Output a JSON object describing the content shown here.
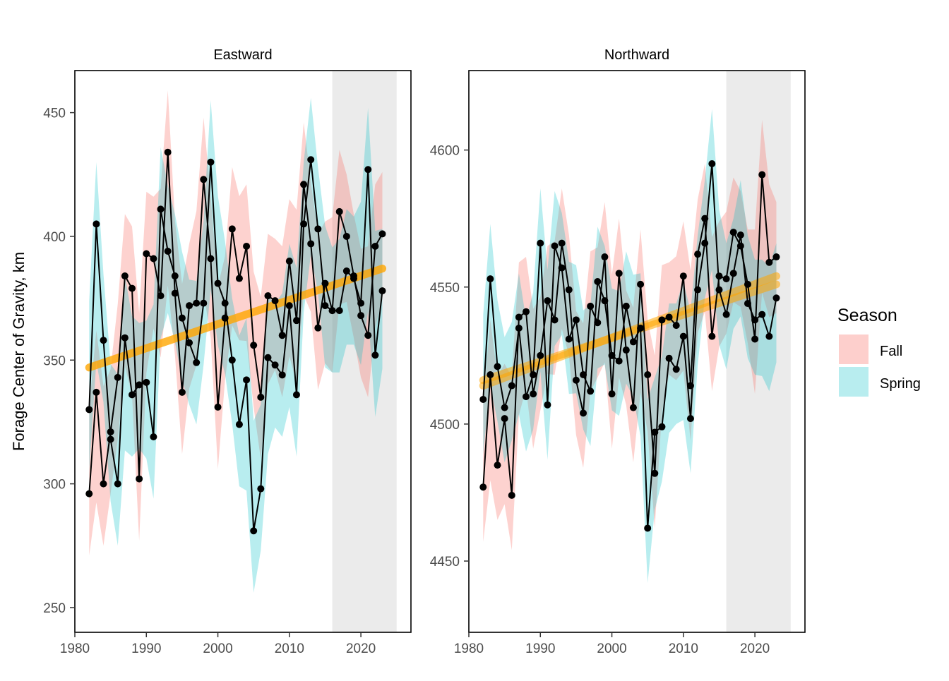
{
  "y_axis_label": "Forage Center of Gravity, km",
  "legend": {
    "title": "Season",
    "entries": [
      {
        "label": "Fall",
        "color": "#F8766D"
      },
      {
        "label": "Spring",
        "color": "#00BFC4"
      }
    ]
  },
  "colors": {
    "trend": "#FFA500",
    "highlight": "#EBEBEB",
    "series": "#000000"
  },
  "chart_data": [
    {
      "type": "line",
      "title": "Eastward",
      "xlim": [
        1980,
        2027
      ],
      "ylim": [
        240,
        467
      ],
      "x_ticks": [
        1980,
        1990,
        2000,
        2010,
        2020
      ],
      "y_ticks": [
        250,
        300,
        350,
        400,
        450
      ],
      "highlight_x": [
        2016,
        2025
      ],
      "trend": {
        "x": [
          1982,
          2023
        ],
        "fall": [
          347,
          387
        ],
        "spring": [
          347,
          387
        ]
      },
      "ribbon_halfwidth": 25,
      "series": [
        {
          "name": "Fall",
          "x": [
            1982,
            1983,
            1984,
            1985,
            1986,
            1987,
            1988,
            1989,
            1990,
            1991,
            1992,
            1993,
            1994,
            1995,
            1996,
            1997,
            1998,
            1999,
            2000,
            2001,
            2002,
            2003,
            2004,
            2005,
            2006,
            2007,
            2008,
            2009,
            2010,
            2011,
            2012,
            2013,
            2014,
            2015,
            2016,
            2017,
            2018,
            2019,
            2020,
            2021,
            2022,
            2023
          ],
          "y": [
            296,
            337,
            300,
            321,
            343,
            384,
            379,
            302,
            393,
            391,
            376,
            434,
            377,
            337,
            372,
            373,
            423,
            391,
            331,
            367,
            403,
            383,
            396,
            356,
            335,
            376,
            374,
            360,
            390,
            366,
            421,
            397,
            363,
            381,
            370,
            410,
            400,
            384,
            368,
            360,
            396,
            401
          ]
        },
        {
          "name": "Spring",
          "x": [
            1982,
            1983,
            1984,
            1985,
            1986,
            1987,
            1988,
            1989,
            1990,
            1991,
            1992,
            1993,
            1994,
            1995,
            1996,
            1997,
            1998,
            1999,
            2000,
            2001,
            2002,
            2003,
            2004,
            2005,
            2006,
            2007,
            2008,
            2009,
            2010,
            2011,
            2012,
            2013,
            2014,
            2015,
            2016,
            2017,
            2018,
            2019,
            2020,
            2021,
            2022,
            2023
          ],
          "y": [
            330,
            405,
            358,
            318,
            300,
            359,
            336,
            340,
            341,
            319,
            411,
            394,
            384,
            367,
            357,
            349,
            373,
            430,
            381,
            373,
            350,
            324,
            342,
            281,
            298,
            351,
            348,
            344,
            372,
            336,
            405,
            431,
            403,
            372,
            370,
            370,
            386,
            383,
            373,
            427,
            352,
            378
          ]
        }
      ]
    },
    {
      "type": "line",
      "title": "Northward",
      "xlim": [
        1980,
        2027
      ],
      "ylim": [
        4424,
        4629
      ],
      "x_ticks": [
        1980,
        1990,
        2000,
        2010,
        2020
      ],
      "y_ticks": [
        4450,
        4500,
        4550,
        4600
      ],
      "highlight_x": [
        2016,
        2025
      ],
      "trend": {
        "x": [
          1982,
          2023
        ],
        "fall": [
          4514,
          4554
        ],
        "spring": [
          4516,
          4551
        ]
      },
      "ribbon_halfwidth": 20,
      "series": [
        {
          "name": "Fall",
          "x": [
            1982,
            1983,
            1984,
            1985,
            1986,
            1987,
            1988,
            1989,
            1990,
            1991,
            1992,
            1993,
            1994,
            1995,
            1996,
            1997,
            1998,
            1999,
            2000,
            2001,
            2002,
            2003,
            2004,
            2005,
            2006,
            2007,
            2008,
            2009,
            2010,
            2011,
            2012,
            2013,
            2014,
            2015,
            2016,
            2017,
            2018,
            2019,
            2020,
            2021,
            2022,
            2023
          ],
          "y": [
            4477,
            4518,
            4485,
            4502,
            4474,
            4539,
            4541,
            4511,
            4525,
            4545,
            4538,
            4566,
            4549,
            4516,
            4504,
            4543,
            4537,
            4561,
            4511,
            4555,
            4527,
            4506,
            4551,
            4518,
            4482,
            4538,
            4539,
            4536,
            4554,
            4514,
            4562,
            4575,
            4532,
            4554,
            4553,
            4570,
            4565,
            4551,
            4531,
            4591,
            4559,
            4561
          ]
        },
        {
          "name": "Spring",
          "x": [
            1982,
            1983,
            1984,
            1985,
            1986,
            1987,
            1988,
            1989,
            1990,
            1991,
            1992,
            1993,
            1994,
            1995,
            1996,
            1997,
            1998,
            1999,
            2000,
            2001,
            2002,
            2003,
            2004,
            2005,
            2006,
            2007,
            2008,
            2009,
            2010,
            2011,
            2012,
            2013,
            2014,
            2015,
            2016,
            2017,
            2018,
            2019,
            2020,
            2021,
            2022,
            2023
          ],
          "y": [
            4509,
            4553,
            4521,
            4506,
            4514,
            4535,
            4510,
            4518,
            4566,
            4507,
            4565,
            4557,
            4531,
            4538,
            4518,
            4512,
            4552,
            4545,
            4525,
            4523,
            4543,
            4530,
            4535,
            4462,
            4497,
            4499,
            4524,
            4520,
            4532,
            4502,
            4549,
            4566,
            4595,
            4549,
            4540,
            4555,
            4569,
            4544,
            4538,
            4540,
            4532,
            4546
          ]
        }
      ]
    }
  ]
}
